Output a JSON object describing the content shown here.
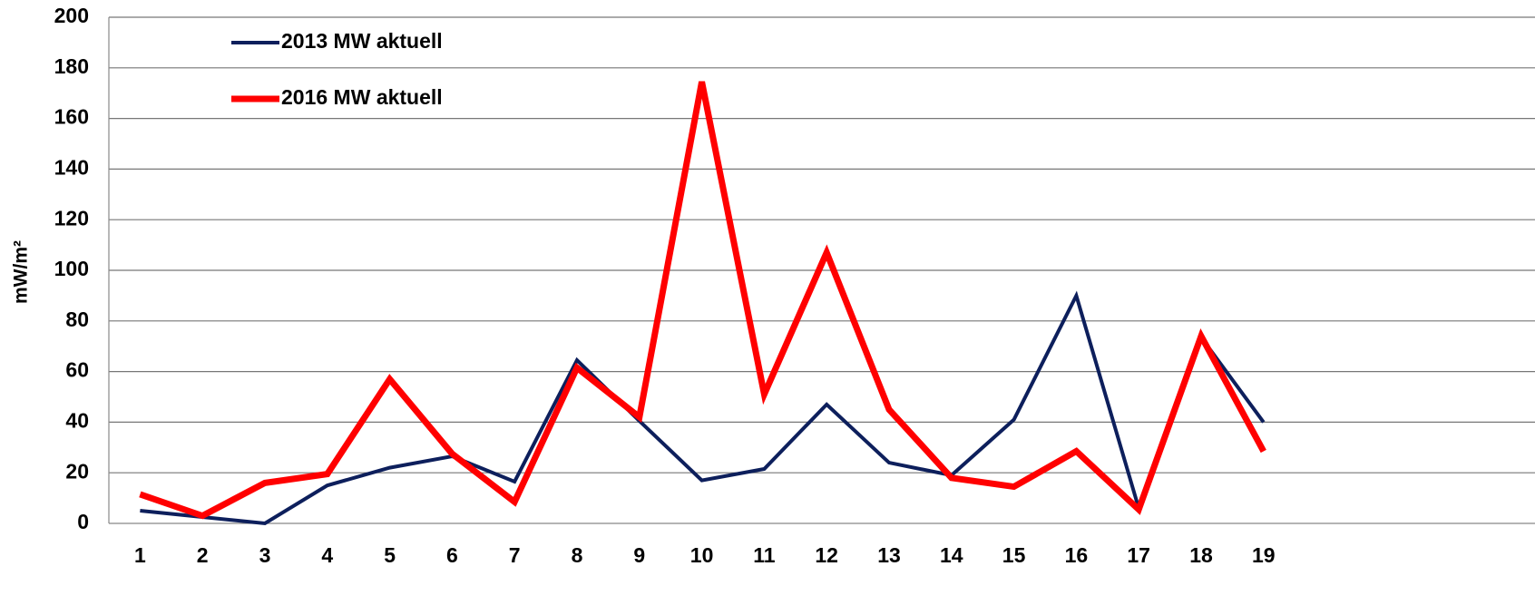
{
  "chart_data": {
    "type": "line",
    "y_label": "mW/m²",
    "categories": [
      "1",
      "2",
      "3",
      "4",
      "5",
      "6",
      "7",
      "8",
      "9",
      "10",
      "11",
      "12",
      "13",
      "14",
      "15",
      "16",
      "17",
      "18",
      "19"
    ],
    "series": [
      {
        "name": "2013 MW aktuell",
        "color": "#0d1f5c",
        "values": [
          5,
          2.5,
          0,
          15,
          22,
          26.5,
          16.5,
          64.5,
          40.5,
          17,
          21.5,
          47,
          24,
          19,
          41,
          90,
          6,
          73.5,
          40
        ]
      },
      {
        "name": "2016 MW aktuell",
        "color": "#ff0000",
        "values": [
          11.5,
          3,
          16,
          19.5,
          57,
          27.5,
          8.5,
          61.5,
          42,
          174.5,
          51,
          107,
          45,
          18,
          14.5,
          28.5,
          5.5,
          74,
          28.5
        ]
      }
    ],
    "ylim": [
      0,
      200
    ],
    "yticks": [
      0,
      20,
      40,
      60,
      80,
      100,
      120,
      140,
      160,
      180,
      200
    ],
    "grid": true
  }
}
